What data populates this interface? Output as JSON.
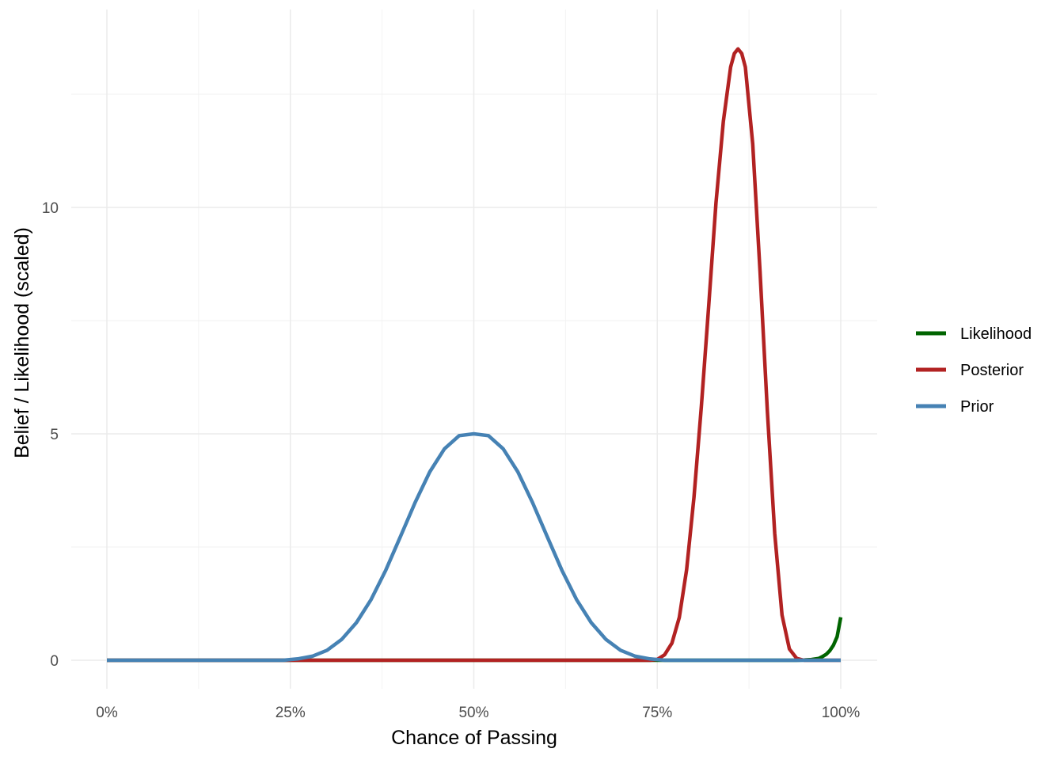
{
  "chart_data": {
    "type": "line",
    "xlabel": "Chance of Passing",
    "ylabel": "Belief / Likelihood (scaled)",
    "xlim": [
      0,
      1
    ],
    "ylim": [
      -0.65,
      13.7
    ],
    "x_ticks": [
      0,
      0.25,
      0.5,
      0.75,
      1.0
    ],
    "x_tick_labels": [
      "0%",
      "25%",
      "50%",
      "75%",
      "100%"
    ],
    "y_ticks": [
      0,
      5,
      10
    ],
    "y_tick_labels": [
      "0",
      "5",
      "10"
    ],
    "grid": true,
    "legend_position": "right",
    "series": [
      {
        "name": "Likelihood",
        "color": "#006400",
        "x": [
          0,
          0.9,
          0.94,
          0.95,
          0.96,
          0.97,
          0.975,
          0.98,
          0.985,
          0.99,
          0.995,
          1.0
        ],
        "y": [
          0,
          0,
          0,
          0.005,
          0.015,
          0.04,
          0.08,
          0.13,
          0.21,
          0.33,
          0.52,
          0.95
        ]
      },
      {
        "name": "Posterior",
        "color": "#B22222",
        "x": [
          0,
          0.74,
          0.75,
          0.76,
          0.77,
          0.78,
          0.79,
          0.8,
          0.81,
          0.82,
          0.83,
          0.84,
          0.85,
          0.855,
          0.86,
          0.865,
          0.87,
          0.88,
          0.89,
          0.9,
          0.91,
          0.92,
          0.93,
          0.94,
          0.95,
          0.96,
          1.0
        ],
        "y": [
          0,
          0,
          0.02,
          0.12,
          0.38,
          0.95,
          2.0,
          3.6,
          5.6,
          7.8,
          10.1,
          11.9,
          13.1,
          13.4,
          13.5,
          13.4,
          13.1,
          11.4,
          8.6,
          5.5,
          2.8,
          1.0,
          0.25,
          0.04,
          0,
          0,
          0
        ]
      },
      {
        "name": "Prior",
        "color": "#4682B4",
        "x": [
          0,
          0.24,
          0.26,
          0.28,
          0.3,
          0.32,
          0.34,
          0.36,
          0.38,
          0.4,
          0.42,
          0.44,
          0.46,
          0.48,
          0.5,
          0.52,
          0.54,
          0.56,
          0.58,
          0.6,
          0.62,
          0.64,
          0.66,
          0.68,
          0.7,
          0.72,
          0.74,
          0.76,
          1.0
        ],
        "y": [
          0,
          0,
          0.03,
          0.09,
          0.22,
          0.46,
          0.83,
          1.34,
          1.99,
          2.73,
          3.48,
          4.16,
          4.67,
          4.96,
          5.0,
          4.96,
          4.67,
          4.16,
          3.48,
          2.73,
          1.99,
          1.34,
          0.83,
          0.46,
          0.22,
          0.09,
          0.03,
          0,
          0
        ]
      }
    ]
  }
}
